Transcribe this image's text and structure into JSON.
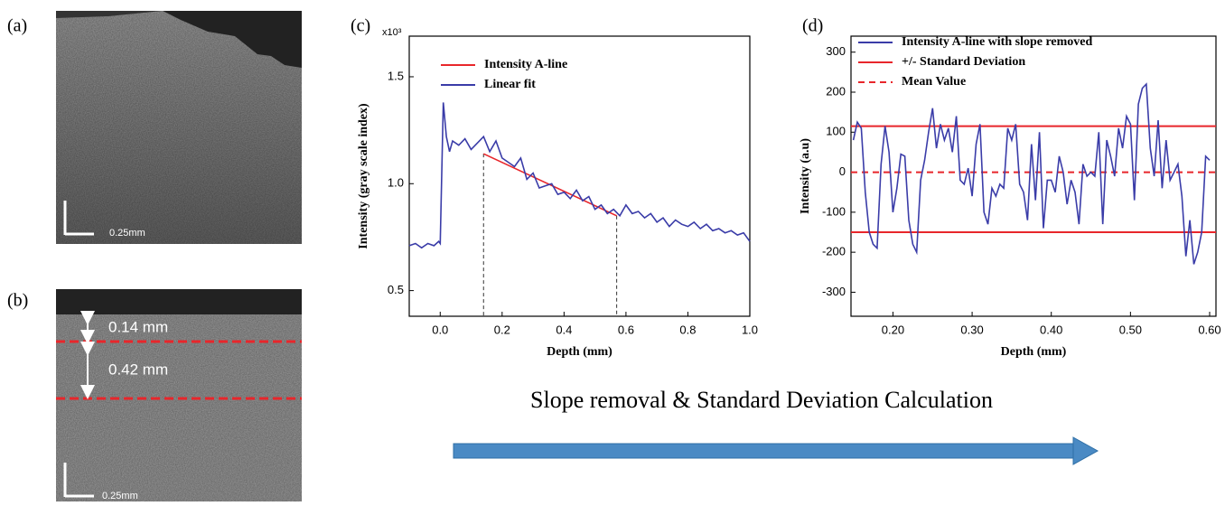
{
  "panels": {
    "a": {
      "label": "(a)",
      "scale": "0.25mm"
    },
    "b": {
      "label": "(b)",
      "scale": "0.25mm",
      "top": "0.14 mm",
      "depth": "0.42 mm"
    }
  },
  "caption": "Slope removal & Standard Deviation Calculation",
  "chart_data": [
    {
      "type": "line",
      "label": "(c)",
      "xlabel": "Depth (mm)",
      "ylabel": "Intensity (gray scale index)",
      "y_multiplier": "x10³",
      "xlim": [
        -0.1,
        1.0
      ],
      "ylim": [
        0.38,
        1.69
      ],
      "xticks": [
        {
          "value": 0.0,
          "label": "0.0"
        },
        {
          "value": 0.2,
          "label": "0.2"
        },
        {
          "value": 0.4,
          "label": "0.4"
        },
        {
          "value": 0.6,
          "label": "0.6"
        },
        {
          "value": 0.8,
          "label": "0.8"
        },
        {
          "value": 1.0,
          "label": "1.0"
        }
      ],
      "yticks": [
        0.5,
        {
          "value": 1.0,
          "label": "1.0"
        },
        1.5
      ],
      "series": [
        {
          "name": "Intensity A-line",
          "color": "#e8262b",
          "x": [
            0.14,
            0.57
          ],
          "values": [
            1.14,
            0.85
          ]
        },
        {
          "name": "Linear fit",
          "color": "#3a3ca8",
          "x": [
            -0.1,
            -0.08,
            -0.06,
            -0.04,
            -0.02,
            -0.005,
            0.0,
            0.01,
            0.02,
            0.03,
            0.04,
            0.06,
            0.08,
            0.1,
            0.12,
            0.14,
            0.16,
            0.18,
            0.2,
            0.22,
            0.24,
            0.26,
            0.28,
            0.3,
            0.32,
            0.34,
            0.36,
            0.38,
            0.4,
            0.42,
            0.44,
            0.46,
            0.48,
            0.5,
            0.52,
            0.54,
            0.56,
            0.58,
            0.6,
            0.62,
            0.64,
            0.66,
            0.68,
            0.7,
            0.72,
            0.74,
            0.76,
            0.78,
            0.8,
            0.82,
            0.84,
            0.86,
            0.88,
            0.9,
            0.92,
            0.94,
            0.96,
            0.98,
            1.0
          ],
          "values": [
            0.71,
            0.72,
            0.7,
            0.72,
            0.71,
            0.73,
            0.72,
            1.38,
            1.22,
            1.15,
            1.2,
            1.18,
            1.21,
            1.16,
            1.19,
            1.22,
            1.15,
            1.2,
            1.12,
            1.1,
            1.08,
            1.12,
            1.02,
            1.05,
            0.98,
            0.99,
            1.0,
            0.95,
            0.96,
            0.93,
            0.97,
            0.92,
            0.94,
            0.88,
            0.9,
            0.86,
            0.88,
            0.85,
            0.9,
            0.86,
            0.87,
            0.84,
            0.86,
            0.82,
            0.84,
            0.8,
            0.83,
            0.81,
            0.8,
            0.82,
            0.79,
            0.81,
            0.78,
            0.79,
            0.77,
            0.78,
            0.76,
            0.77,
            0.73
          ]
        }
      ],
      "drop_lines": true
    },
    {
      "type": "line",
      "label": "(d)",
      "xlabel": "Depth (mm)",
      "ylabel": "Intensity (a.u)",
      "xlim": [
        0.147,
        0.608
      ],
      "ylim": [
        -360,
        340
      ],
      "xticks": [
        {
          "value": 0.2,
          "label": "0.20"
        },
        {
          "value": 0.3,
          "label": "0.30"
        },
        {
          "value": 0.4,
          "label": "0.40"
        },
        {
          "value": 0.5,
          "label": "0.50"
        },
        {
          "value": 0.6,
          "label": "0.60"
        }
      ],
      "yticks": [
        -300,
        -200,
        -100,
        0,
        100,
        200,
        300
      ],
      "series": [
        {
          "name": "Intensity A-line with slope removed",
          "color": "#3a3ca8",
          "x": [
            0.15,
            0.155,
            0.16,
            0.165,
            0.17,
            0.175,
            0.18,
            0.185,
            0.19,
            0.195,
            0.2,
            0.205,
            0.21,
            0.215,
            0.22,
            0.225,
            0.23,
            0.235,
            0.24,
            0.245,
            0.25,
            0.255,
            0.26,
            0.265,
            0.27,
            0.275,
            0.28,
            0.285,
            0.29,
            0.295,
            0.3,
            0.305,
            0.31,
            0.315,
            0.32,
            0.325,
            0.33,
            0.335,
            0.34,
            0.345,
            0.35,
            0.355,
            0.36,
            0.365,
            0.37,
            0.375,
            0.38,
            0.385,
            0.39,
            0.395,
            0.4,
            0.405,
            0.41,
            0.415,
            0.42,
            0.425,
            0.43,
            0.435,
            0.44,
            0.445,
            0.45,
            0.455,
            0.46,
            0.465,
            0.47,
            0.475,
            0.48,
            0.485,
            0.49,
            0.495,
            0.5,
            0.505,
            0.51,
            0.515,
            0.52,
            0.525,
            0.53,
            0.535,
            0.54,
            0.545,
            0.55,
            0.555,
            0.56,
            0.565,
            0.57,
            0.575,
            0.58,
            0.585,
            0.59,
            0.595,
            0.6
          ],
          "values": [
            80,
            125,
            110,
            -50,
            -150,
            -180,
            -190,
            20,
            115,
            50,
            -100,
            -40,
            45,
            40,
            -120,
            -180,
            -200,
            -20,
            30,
            100,
            160,
            60,
            120,
            80,
            110,
            50,
            140,
            -20,
            -30,
            10,
            -60,
            70,
            120,
            -100,
            -130,
            -40,
            -60,
            -30,
            -40,
            110,
            80,
            120,
            -30,
            -50,
            -120,
            70,
            -70,
            100,
            -140,
            -20,
            -20,
            -50,
            40,
            0,
            -80,
            -20,
            -50,
            -130,
            20,
            -10,
            0,
            -10,
            100,
            -130,
            80,
            40,
            -10,
            110,
            60,
            140,
            120,
            -70,
            170,
            210,
            220,
            60,
            -10,
            130,
            -40,
            80,
            -20,
            0,
            20,
            -60,
            -210,
            -120,
            -230,
            -200,
            -150,
            40,
            30
          ]
        }
      ],
      "lines": [
        {
          "name": "+/-  Standard Deviation",
          "color": "#e8262b",
          "values": [
            115,
            -150
          ]
        },
        {
          "name": "Mean Value",
          "color": "#e8262b",
          "dashed": true,
          "values": [
            0
          ]
        }
      ]
    }
  ]
}
